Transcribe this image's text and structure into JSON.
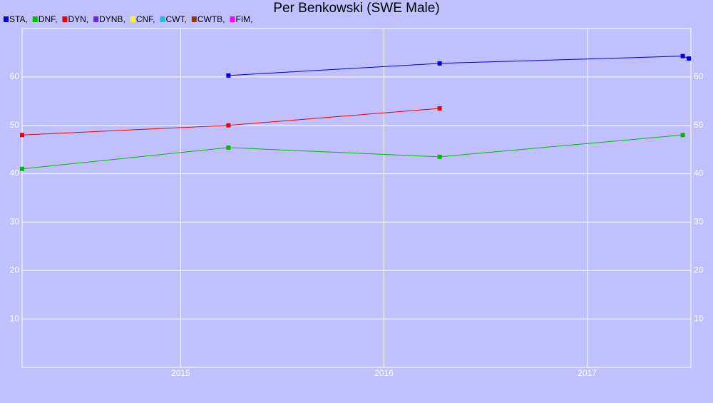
{
  "chart_data": {
    "type": "line",
    "title": "Per Benkowski (SWE Male)",
    "x": [
      2014.22,
      2015.235,
      2016.274,
      2017.47,
      2017.5
    ],
    "xlim": [
      2014.22,
      2017.51
    ],
    "xticks": [
      2015,
      2016,
      2017
    ],
    "ylim": [
      0,
      70
    ],
    "yticks": [
      10,
      20,
      30,
      40,
      50,
      60
    ],
    "grid": true,
    "legend": "top-left",
    "series": [
      {
        "name": "STA,",
        "color": "#0000dd",
        "values": [
          null,
          60.3,
          62.8,
          64.3,
          63.8
        ]
      },
      {
        "name": "DNF,",
        "color": "#00bb00",
        "values": [
          41,
          45.4,
          43.5,
          48,
          null
        ]
      },
      {
        "name": "DYN,",
        "color": "#ee0000",
        "values": [
          48,
          50,
          53.5,
          null,
          null
        ]
      },
      {
        "name": "DYNB,",
        "color": "#7a1ee6",
        "values": [
          null,
          null,
          null,
          null,
          null
        ]
      },
      {
        "name": "CNF,",
        "color": "#ffff00",
        "values": [
          null,
          null,
          null,
          null,
          null
        ]
      },
      {
        "name": "CWT,",
        "color": "#22bbdd",
        "values": [
          null,
          null,
          null,
          null,
          null
        ]
      },
      {
        "name": "CWTB,",
        "color": "#993300",
        "values": [
          null,
          null,
          null,
          null,
          null
        ]
      },
      {
        "name": "FIM,",
        "color": "#ff00ff",
        "values": [
          null,
          null,
          null,
          null,
          null
        ]
      }
    ]
  }
}
